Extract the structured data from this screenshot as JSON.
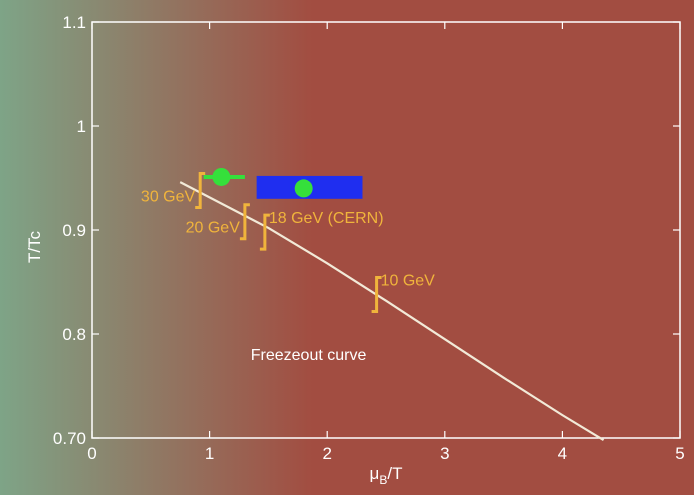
{
  "chart_data": {
    "type": "scatter",
    "title": "",
    "xlabel": {
      "main": "μ",
      "sub": "B",
      "rest": "/T"
    },
    "ylabel": "T/Tc",
    "xlim": [
      0,
      5
    ],
    "ylim": [
      0.7,
      1.1
    ],
    "x_ticks": [
      "0",
      "1",
      "2",
      "3",
      "4",
      "5"
    ],
    "y_ticks": [
      "0.70",
      "0.8",
      "0.9",
      "1",
      "1.1"
    ],
    "grid": false,
    "background": {
      "left": "#7ea487",
      "right": "#a24d41"
    },
    "colors": {
      "curve": "#f2ead8",
      "energy_marker": "#f0b43c",
      "point": "#35e03b",
      "band": "#1f2ef0"
    },
    "freezeout_curve": {
      "label": "Freezeout curve",
      "points": [
        [
          0.75,
          0.946
        ],
        [
          1.5,
          0.902
        ],
        [
          2.0,
          0.868
        ],
        [
          2.5,
          0.832
        ],
        [
          3.0,
          0.795
        ],
        [
          3.5,
          0.758
        ],
        [
          4.0,
          0.722
        ],
        [
          4.35,
          0.698
        ]
      ]
    },
    "energy_markers": [
      {
        "label": "30 GeV",
        "x": 0.92,
        "y": 0.937
      },
      {
        "label": "20 GeV",
        "x": 1.3,
        "y": 0.907
      },
      {
        "label": "18 GeV (CERN)",
        "x": 1.47,
        "y": 0.897
      },
      {
        "label": "10 GeV",
        "x": 2.42,
        "y": 0.837
      }
    ],
    "data_points": [
      {
        "x": 1.1,
        "y": 0.951,
        "xerr": [
          0.95,
          1.3
        ],
        "yerr": [
          0.948,
          0.954
        ]
      },
      {
        "x": 1.8,
        "y": 0.94,
        "xerr": null,
        "yerr": null
      }
    ],
    "band": {
      "x": [
        1.4,
        2.3
      ],
      "y": [
        0.93,
        0.952
      ]
    }
  }
}
